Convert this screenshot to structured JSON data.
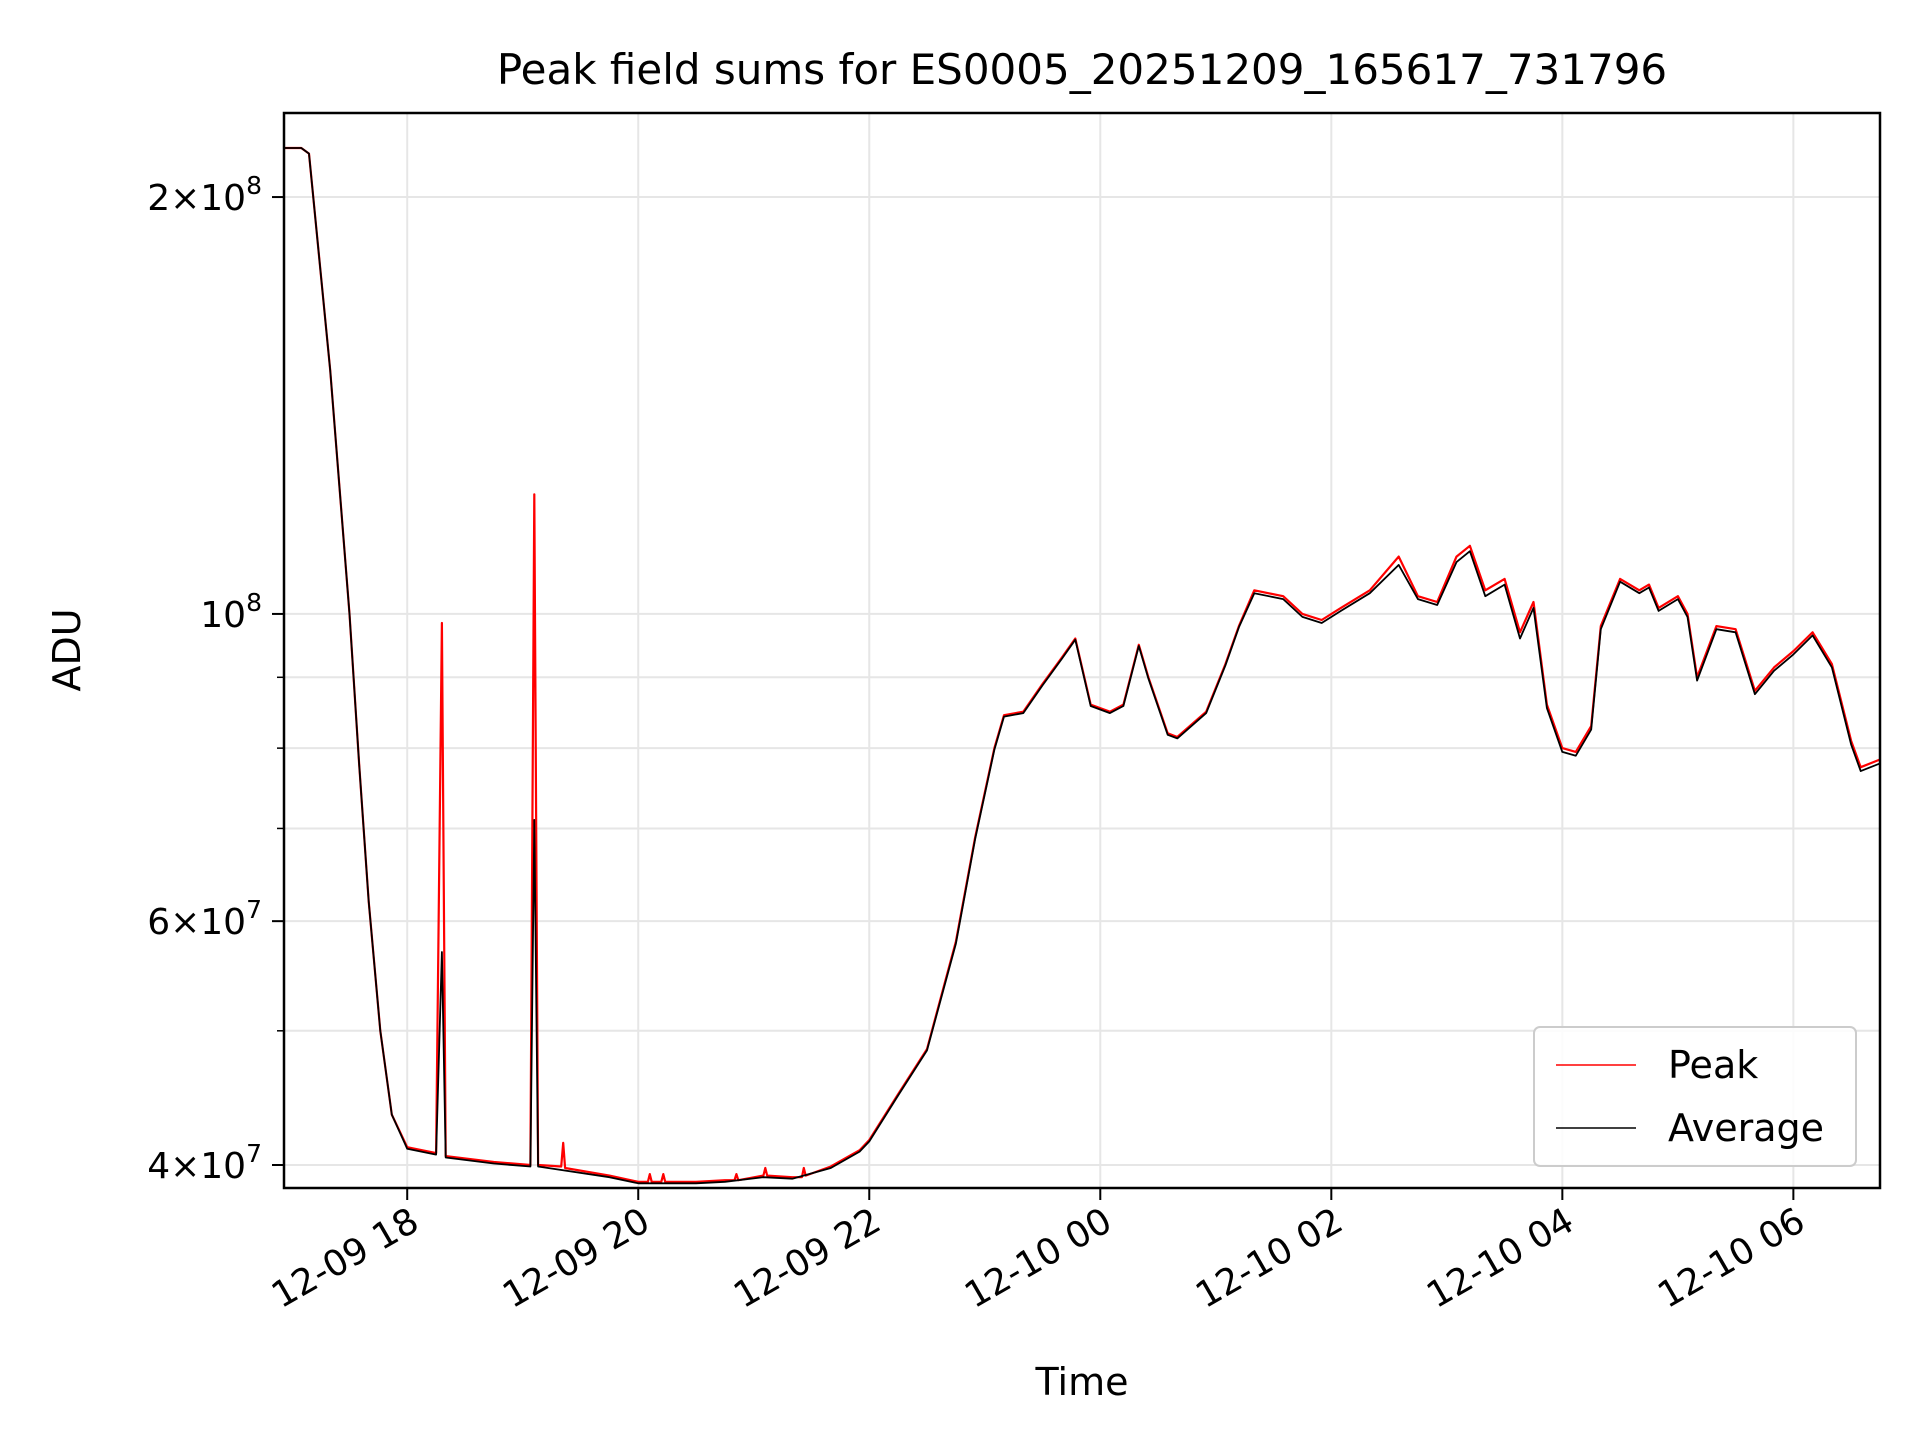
{
  "chart_data": {
    "type": "line",
    "title": "Peak field sums for ES0005_20251209_165617_731796",
    "xlabel": "Time",
    "ylabel": "ADU",
    "yscale": "log",
    "ylim": [
      38500000,
      230000000
    ],
    "xlim": [
      "2025-12-09 16:56",
      "2025-12-10 06:45"
    ],
    "grid": true,
    "legend": "lower-right",
    "x_ticks": [
      {
        "t": "2025-12-09 18:00",
        "label": "12-09 18"
      },
      {
        "t": "2025-12-09 20:00",
        "label": "12-09 20"
      },
      {
        "t": "2025-12-09 22:00",
        "label": "12-09 22"
      },
      {
        "t": "2025-12-10 00:00",
        "label": "12-10 00"
      },
      {
        "t": "2025-12-10 02:00",
        "label": "12-10 02"
      },
      {
        "t": "2025-12-10 04:00",
        "label": "12-10 04"
      },
      {
        "t": "2025-12-10 06:00",
        "label": "12-10 06"
      }
    ],
    "y_ticks": [
      {
        "v": 40000000,
        "mant": "4",
        "exp": "7"
      },
      {
        "v": 60000000,
        "mant": "6",
        "exp": "7"
      },
      {
        "v": 100000000,
        "mant": "",
        "exp": "8"
      },
      {
        "v": 200000000,
        "mant": "2",
        "exp": "8"
      }
    ],
    "y_minor_ticks": [
      50000000,
      70000000,
      80000000,
      90000000
    ],
    "series": [
      {
        "name": "Peak",
        "color": "#ff0000",
        "points": [
          [
            "2025-12-09 16:56",
            217000000
          ],
          [
            "2025-12-09 17:05",
            217000000
          ],
          [
            "2025-12-09 17:09",
            215000000
          ],
          [
            "2025-12-09 17:20",
            150000000
          ],
          [
            "2025-12-09 17:30",
            100000000
          ],
          [
            "2025-12-09 17:35",
            78000000
          ],
          [
            "2025-12-09 17:40",
            62000000
          ],
          [
            "2025-12-09 17:46",
            50000000
          ],
          [
            "2025-12-09 17:52",
            43500000
          ],
          [
            "2025-12-09 18:00",
            41200000
          ],
          [
            "2025-12-09 18:15",
            40800000
          ],
          [
            "2025-12-09 18:18",
            98500000
          ],
          [
            "2025-12-09 18:20",
            40600000
          ],
          [
            "2025-12-09 18:45",
            40200000
          ],
          [
            "2025-12-09 19:04",
            40000000
          ],
          [
            "2025-12-09 19:06",
            122000000
          ],
          [
            "2025-12-09 19:08",
            40000000
          ],
          [
            "2025-12-09 19:20",
            39900000
          ],
          [
            "2025-12-09 19:21",
            41500000
          ],
          [
            "2025-12-09 19:22",
            39800000
          ],
          [
            "2025-12-09 19:45",
            39300000
          ],
          [
            "2025-12-09 20:00",
            38900000
          ],
          [
            "2025-12-09 20:05",
            38900000
          ],
          [
            "2025-12-09 20:06",
            39400000
          ],
          [
            "2025-12-09 20:07",
            38900000
          ],
          [
            "2025-12-09 20:12",
            38900000
          ],
          [
            "2025-12-09 20:13",
            39400000
          ],
          [
            "2025-12-09 20:14",
            38900000
          ],
          [
            "2025-12-09 20:30",
            38900000
          ],
          [
            "2025-12-09 20:45",
            39000000
          ],
          [
            "2025-12-09 20:50",
            39000000
          ],
          [
            "2025-12-09 20:51",
            39400000
          ],
          [
            "2025-12-09 20:52",
            39000000
          ],
          [
            "2025-12-09 21:05",
            39300000
          ],
          [
            "2025-12-09 21:06",
            39800000
          ],
          [
            "2025-12-09 21:07",
            39300000
          ],
          [
            "2025-12-09 21:20",
            39200000
          ],
          [
            "2025-12-09 21:25",
            39200000
          ],
          [
            "2025-12-09 21:26",
            39800000
          ],
          [
            "2025-12-09 21:27",
            39300000
          ],
          [
            "2025-12-09 21:40",
            39900000
          ],
          [
            "2025-12-09 21:55",
            41000000
          ],
          [
            "2025-12-09 22:00",
            41700000
          ],
          [
            "2025-12-09 22:15",
            45000000
          ],
          [
            "2025-12-09 22:30",
            48500000
          ],
          [
            "2025-12-09 22:45",
            58000000
          ],
          [
            "2025-12-09 22:55",
            69000000
          ],
          [
            "2025-12-09 23:05",
            80000000
          ],
          [
            "2025-12-09 23:10",
            84500000
          ],
          [
            "2025-12-09 23:20",
            85000000
          ],
          [
            "2025-12-09 23:30",
            89000000
          ],
          [
            "2025-12-09 23:40",
            93000000
          ],
          [
            "2025-12-09 23:47",
            96000000
          ],
          [
            "2025-12-09 23:55",
            86000000
          ],
          [
            "2025-12-10 00:05",
            85000000
          ],
          [
            "2025-12-10 00:12",
            86000000
          ],
          [
            "2025-12-10 00:20",
            95000000
          ],
          [
            "2025-12-10 00:25",
            90000000
          ],
          [
            "2025-12-10 00:35",
            82000000
          ],
          [
            "2025-12-10 00:40",
            81500000
          ],
          [
            "2025-12-10 00:55",
            85000000
          ],
          [
            "2025-12-10 01:05",
            92000000
          ],
          [
            "2025-12-10 01:12",
            98000000
          ],
          [
            "2025-12-10 01:20",
            104000000
          ],
          [
            "2025-12-10 01:35",
            103000000
          ],
          [
            "2025-12-10 01:45",
            100000000
          ],
          [
            "2025-12-10 01:55",
            99000000
          ],
          [
            "2025-12-10 02:05",
            101000000
          ],
          [
            "2025-12-10 02:20",
            104000000
          ],
          [
            "2025-12-10 02:35",
            110000000
          ],
          [
            "2025-12-10 02:45",
            103000000
          ],
          [
            "2025-12-10 02:55",
            102000000
          ],
          [
            "2025-12-10 03:05",
            110000000
          ],
          [
            "2025-12-10 03:12",
            112000000
          ],
          [
            "2025-12-10 03:20",
            104000000
          ],
          [
            "2025-12-10 03:30",
            106000000
          ],
          [
            "2025-12-10 03:38",
            97000000
          ],
          [
            "2025-12-10 03:45",
            102000000
          ],
          [
            "2025-12-10 03:52",
            86000000
          ],
          [
            "2025-12-10 04:00",
            80000000
          ],
          [
            "2025-12-10 04:07",
            79500000
          ],
          [
            "2025-12-10 04:15",
            83000000
          ],
          [
            "2025-12-10 04:20",
            98000000
          ],
          [
            "2025-12-10 04:30",
            106000000
          ],
          [
            "2025-12-10 04:40",
            104000000
          ],
          [
            "2025-12-10 04:45",
            105000000
          ],
          [
            "2025-12-10 04:50",
            101000000
          ],
          [
            "2025-12-10 05:00",
            103000000
          ],
          [
            "2025-12-10 05:05",
            100000000
          ],
          [
            "2025-12-10 05:10",
            90000000
          ],
          [
            "2025-12-10 05:20",
            98000000
          ],
          [
            "2025-12-10 05:30",
            97500000
          ],
          [
            "2025-12-10 05:40",
            88000000
          ],
          [
            "2025-12-10 05:50",
            91500000
          ],
          [
            "2025-12-10 06:00",
            94000000
          ],
          [
            "2025-12-10 06:10",
            97000000
          ],
          [
            "2025-12-10 06:20",
            92000000
          ],
          [
            "2025-12-10 06:30",
            81000000
          ],
          [
            "2025-12-10 06:35",
            77500000
          ],
          [
            "2025-12-10 06:45",
            78500000
          ]
        ]
      },
      {
        "name": "Average",
        "color": "#000000",
        "points": [
          [
            "2025-12-09 16:56",
            217000000
          ],
          [
            "2025-12-09 17:05",
            217000000
          ],
          [
            "2025-12-09 17:09",
            215000000
          ],
          [
            "2025-12-09 17:20",
            150000000
          ],
          [
            "2025-12-09 17:30",
            100000000
          ],
          [
            "2025-12-09 17:35",
            78000000
          ],
          [
            "2025-12-09 17:40",
            62000000
          ],
          [
            "2025-12-09 17:46",
            50000000
          ],
          [
            "2025-12-09 17:52",
            43500000
          ],
          [
            "2025-12-09 18:00",
            41100000
          ],
          [
            "2025-12-09 18:15",
            40700000
          ],
          [
            "2025-12-09 18:18",
            57000000
          ],
          [
            "2025-12-09 18:20",
            40500000
          ],
          [
            "2025-12-09 18:45",
            40100000
          ],
          [
            "2025-12-09 19:04",
            39900000
          ],
          [
            "2025-12-09 19:06",
            71000000
          ],
          [
            "2025-12-09 19:08",
            39900000
          ],
          [
            "2025-12-09 19:45",
            39200000
          ],
          [
            "2025-12-09 20:00",
            38800000
          ],
          [
            "2025-12-09 20:30",
            38800000
          ],
          [
            "2025-12-09 20:45",
            38900000
          ],
          [
            "2025-12-09 21:05",
            39200000
          ],
          [
            "2025-12-09 21:20",
            39100000
          ],
          [
            "2025-12-09 21:40",
            39800000
          ],
          [
            "2025-12-09 21:55",
            40900000
          ],
          [
            "2025-12-09 22:00",
            41600000
          ],
          [
            "2025-12-09 22:15",
            44900000
          ],
          [
            "2025-12-09 22:30",
            48400000
          ],
          [
            "2025-12-09 22:45",
            57800000
          ],
          [
            "2025-12-09 22:55",
            68800000
          ],
          [
            "2025-12-09 23:05",
            79800000
          ],
          [
            "2025-12-09 23:10",
            84300000
          ],
          [
            "2025-12-09 23:20",
            84800000
          ],
          [
            "2025-12-09 23:30",
            88800000
          ],
          [
            "2025-12-09 23:40",
            92800000
          ],
          [
            "2025-12-09 23:47",
            95800000
          ],
          [
            "2025-12-09 23:55",
            85800000
          ],
          [
            "2025-12-10 00:05",
            84800000
          ],
          [
            "2025-12-10 00:12",
            85800000
          ],
          [
            "2025-12-10 00:20",
            94800000
          ],
          [
            "2025-12-10 00:25",
            89800000
          ],
          [
            "2025-12-10 00:35",
            81800000
          ],
          [
            "2025-12-10 00:40",
            81300000
          ],
          [
            "2025-12-10 00:55",
            84800000
          ],
          [
            "2025-12-10 01:05",
            91800000
          ],
          [
            "2025-12-10 01:12",
            97800000
          ],
          [
            "2025-12-10 01:20",
            103500000
          ],
          [
            "2025-12-10 01:35",
            102500000
          ],
          [
            "2025-12-10 01:45",
            99500000
          ],
          [
            "2025-12-10 01:55",
            98500000
          ],
          [
            "2025-12-10 02:05",
            100500000
          ],
          [
            "2025-12-10 02:20",
            103500000
          ],
          [
            "2025-12-10 02:35",
            108500000
          ],
          [
            "2025-12-10 02:45",
            102500000
          ],
          [
            "2025-12-10 02:55",
            101500000
          ],
          [
            "2025-12-10 03:05",
            109000000
          ],
          [
            "2025-12-10 03:12",
            111000000
          ],
          [
            "2025-12-10 03:20",
            103000000
          ],
          [
            "2025-12-10 03:30",
            105000000
          ],
          [
            "2025-12-10 03:38",
            96000000
          ],
          [
            "2025-12-10 03:45",
            101000000
          ],
          [
            "2025-12-10 03:52",
            85500000
          ],
          [
            "2025-12-10 04:00",
            79500000
          ],
          [
            "2025-12-10 04:07",
            79000000
          ],
          [
            "2025-12-10 04:15",
            82500000
          ],
          [
            "2025-12-10 04:20",
            97500000
          ],
          [
            "2025-12-10 04:30",
            105500000
          ],
          [
            "2025-12-10 04:40",
            103500000
          ],
          [
            "2025-12-10 04:45",
            104500000
          ],
          [
            "2025-12-10 04:50",
            100500000
          ],
          [
            "2025-12-10 05:00",
            102500000
          ],
          [
            "2025-12-10 05:05",
            99500000
          ],
          [
            "2025-12-10 05:10",
            89500000
          ],
          [
            "2025-12-10 05:20",
            97500000
          ],
          [
            "2025-12-10 05:30",
            97000000
          ],
          [
            "2025-12-10 05:40",
            87500000
          ],
          [
            "2025-12-10 05:50",
            91000000
          ],
          [
            "2025-12-10 06:00",
            93500000
          ],
          [
            "2025-12-10 06:10",
            96500000
          ],
          [
            "2025-12-10 06:20",
            91500000
          ],
          [
            "2025-12-10 06:30",
            80500000
          ],
          [
            "2025-12-10 06:35",
            77000000
          ],
          [
            "2025-12-10 06:45",
            78000000
          ]
        ]
      }
    ]
  }
}
